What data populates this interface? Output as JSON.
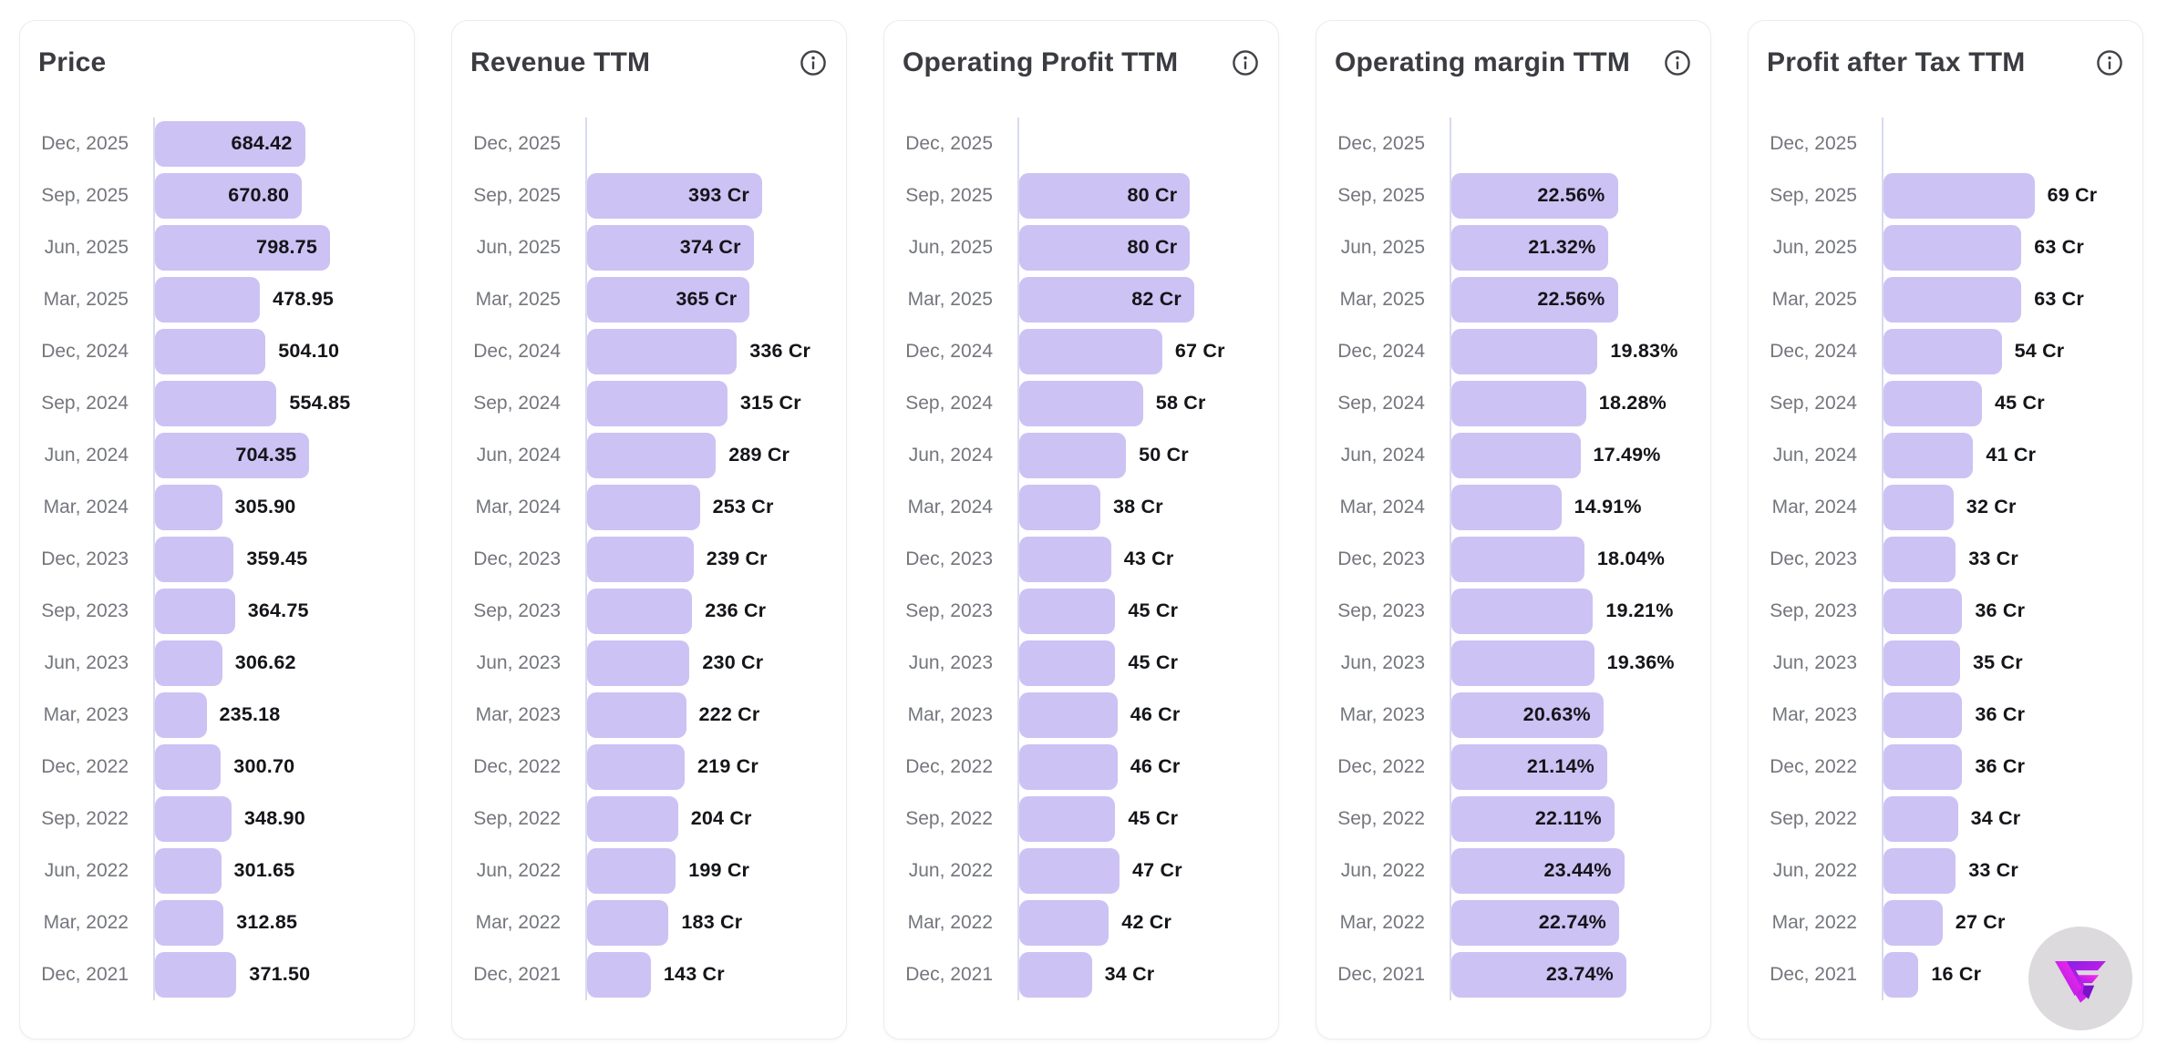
{
  "page": {
    "background": "#ffffff"
  },
  "colors": {
    "bar_fill": "#cdc2f4",
    "axis_line": "#d6dbef",
    "card_border": "#ececf0",
    "title_text": "#3b3c42",
    "category_text": "#74767d",
    "value_text": "#141519",
    "logo_badge_bg": "#dcdadd",
    "logo_gradient_start": "#7c1fe0",
    "logo_gradient_end": "#ef1ff0"
  },
  "icons": {
    "info": "info-icon",
    "logo": "brand-logo"
  },
  "chart_data": [
    {
      "type": "bar",
      "title": "Price",
      "has_info_icon": false,
      "unit": "",
      "axis_max": 798.75,
      "legend": "none",
      "grid": "off",
      "categories": [
        "Dec, 2025",
        "Sep, 2025",
        "Jun, 2025",
        "Mar, 2025",
        "Dec, 2024",
        "Sep, 2024",
        "Jun, 2024",
        "Mar, 2024",
        "Dec, 2023",
        "Sep, 2023",
        "Jun, 2023",
        "Mar, 2023",
        "Dec, 2022",
        "Sep, 2022",
        "Jun, 2022",
        "Mar, 2022",
        "Dec, 2021"
      ],
      "values": [
        684.42,
        670.8,
        798.75,
        478.95,
        504.1,
        554.85,
        704.35,
        305.9,
        359.45,
        364.75,
        306.62,
        235.18,
        300.7,
        348.9,
        301.65,
        312.85,
        371.5
      ],
      "labels": [
        "684.42",
        "670.80",
        "798.75",
        "478.95",
        "504.10",
        "554.85",
        "704.35",
        "305.90",
        "359.45",
        "364.75",
        "306.62",
        "235.18",
        "300.70",
        "348.90",
        "301.65",
        "312.85",
        "371.50"
      ],
      "label_inside": [
        true,
        true,
        true,
        false,
        false,
        false,
        true,
        false,
        false,
        false,
        false,
        false,
        false,
        false,
        false,
        false,
        false
      ]
    },
    {
      "type": "bar",
      "title": "Revenue TTM",
      "has_info_icon": true,
      "unit": "Cr",
      "axis_max": 393,
      "legend": "none",
      "grid": "off",
      "categories": [
        "Dec, 2025",
        "Sep, 2025",
        "Jun, 2025",
        "Mar, 2025",
        "Dec, 2024",
        "Sep, 2024",
        "Jun, 2024",
        "Mar, 2024",
        "Dec, 2023",
        "Sep, 2023",
        "Jun, 2023",
        "Mar, 2023",
        "Dec, 2022",
        "Sep, 2022",
        "Jun, 2022",
        "Mar, 2022",
        "Dec, 2021"
      ],
      "values": [
        null,
        393,
        374,
        365,
        336,
        315,
        289,
        253,
        239,
        236,
        230,
        222,
        219,
        204,
        199,
        183,
        143
      ],
      "labels": [
        "",
        "393 Cr",
        "374 Cr",
        "365 Cr",
        "336 Cr",
        "315 Cr",
        "289 Cr",
        "253 Cr",
        "239 Cr",
        "236 Cr",
        "230 Cr",
        "222 Cr",
        "219 Cr",
        "204 Cr",
        "199 Cr",
        "183 Cr",
        "143 Cr"
      ],
      "label_inside": [
        false,
        true,
        true,
        true,
        false,
        false,
        false,
        false,
        false,
        false,
        false,
        false,
        false,
        false,
        false,
        false,
        false
      ]
    },
    {
      "type": "bar",
      "title": "Operating Profit TTM",
      "has_info_icon": true,
      "unit": "Cr",
      "axis_max": 82,
      "legend": "none",
      "grid": "off",
      "categories": [
        "Dec, 2025",
        "Sep, 2025",
        "Jun, 2025",
        "Mar, 2025",
        "Dec, 2024",
        "Sep, 2024",
        "Jun, 2024",
        "Mar, 2024",
        "Dec, 2023",
        "Sep, 2023",
        "Jun, 2023",
        "Mar, 2023",
        "Dec, 2022",
        "Sep, 2022",
        "Jun, 2022",
        "Mar, 2022",
        "Dec, 2021"
      ],
      "values": [
        null,
        80,
        80,
        82,
        67,
        58,
        50,
        38,
        43,
        45,
        45,
        46,
        46,
        45,
        47,
        42,
        34
      ],
      "labels": [
        "",
        "80 Cr",
        "80 Cr",
        "82 Cr",
        "67 Cr",
        "58 Cr",
        "50 Cr",
        "38 Cr",
        "43 Cr",
        "45 Cr",
        "45 Cr",
        "46 Cr",
        "46 Cr",
        "45 Cr",
        "47 Cr",
        "42 Cr",
        "34 Cr"
      ],
      "label_inside": [
        false,
        true,
        true,
        true,
        false,
        false,
        false,
        false,
        false,
        false,
        false,
        false,
        false,
        false,
        false,
        false,
        false
      ]
    },
    {
      "type": "bar",
      "title": "Operating margin TTM",
      "has_info_icon": true,
      "unit": "%",
      "axis_max": 23.74,
      "legend": "none",
      "grid": "off",
      "categories": [
        "Dec, 2025",
        "Sep, 2025",
        "Jun, 2025",
        "Mar, 2025",
        "Dec, 2024",
        "Sep, 2024",
        "Jun, 2024",
        "Mar, 2024",
        "Dec, 2023",
        "Sep, 2023",
        "Jun, 2023",
        "Mar, 2023",
        "Dec, 2022",
        "Sep, 2022",
        "Jun, 2022",
        "Mar, 2022",
        "Dec, 2021"
      ],
      "values": [
        null,
        22.56,
        21.32,
        22.56,
        19.83,
        18.28,
        17.49,
        14.91,
        18.04,
        19.21,
        19.36,
        20.63,
        21.14,
        22.11,
        23.44,
        22.74,
        23.74
      ],
      "labels": [
        "",
        "22.56%",
        "21.32%",
        "22.56%",
        "19.83%",
        "18.28%",
        "17.49%",
        "14.91%",
        "18.04%",
        "19.21%",
        "19.36%",
        "20.63%",
        "21.14%",
        "22.11%",
        "23.44%",
        "22.74%",
        "23.74%"
      ],
      "label_inside": [
        false,
        true,
        true,
        true,
        false,
        false,
        false,
        false,
        false,
        false,
        false,
        true,
        true,
        true,
        true,
        true,
        true
      ]
    },
    {
      "type": "bar",
      "title": "Profit after Tax TTM",
      "has_info_icon": true,
      "unit": "Cr",
      "axis_max": 80,
      "legend": "none",
      "grid": "off",
      "categories": [
        "Dec, 2025",
        "Sep, 2025",
        "Jun, 2025",
        "Mar, 2025",
        "Dec, 2024",
        "Sep, 2024",
        "Jun, 2024",
        "Mar, 2024",
        "Dec, 2023",
        "Sep, 2023",
        "Jun, 2023",
        "Mar, 2023",
        "Dec, 2022",
        "Sep, 2022",
        "Jun, 2022",
        "Mar, 2022",
        "Dec, 2021"
      ],
      "values": [
        null,
        69,
        63,
        63,
        54,
        45,
        41,
        32,
        33,
        36,
        35,
        36,
        36,
        34,
        33,
        27,
        16
      ],
      "labels": [
        "",
        "69 Cr",
        "63 Cr",
        "63 Cr",
        "54 Cr",
        "45 Cr",
        "41 Cr",
        "32 Cr",
        "33 Cr",
        "36 Cr",
        "35 Cr",
        "36 Cr",
        "36 Cr",
        "34 Cr",
        "33 Cr",
        "27 Cr",
        "16 Cr"
      ],
      "label_inside": [
        false,
        false,
        false,
        false,
        false,
        false,
        false,
        false,
        false,
        false,
        false,
        false,
        false,
        false,
        false,
        false,
        false
      ]
    }
  ]
}
